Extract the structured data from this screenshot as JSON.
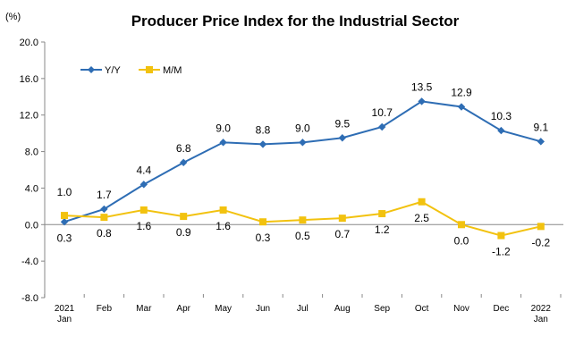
{
  "chart_data": {
    "type": "line",
    "title": "Producer Price Index for the Industrial Sector",
    "ylabel": "(%)",
    "ylim": [
      -8.0,
      20.0
    ],
    "yticks": [
      "20.0",
      "16.0",
      "12.0",
      "8.0",
      "4.0",
      "0.0",
      "-4.0",
      "-8.0"
    ],
    "ytick_values": [
      20,
      16,
      12,
      8,
      4,
      0,
      -4,
      -8
    ],
    "categories": [
      [
        "2021",
        "Jan"
      ],
      [
        "Feb"
      ],
      [
        "Mar"
      ],
      [
        "Apr"
      ],
      [
        "May"
      ],
      [
        "Jun"
      ],
      [
        "Jul"
      ],
      [
        "Aug"
      ],
      [
        "Sep"
      ],
      [
        "Oct"
      ],
      [
        "Nov"
      ],
      [
        "Dec"
      ],
      [
        "2022",
        "Jan"
      ]
    ],
    "grid": false,
    "legend_position": "top-left",
    "series": [
      {
        "name": "Y/Y",
        "color": "#2E6DB4",
        "marker": "diamond",
        "values": [
          0.3,
          1.7,
          4.4,
          6.8,
          9.0,
          8.8,
          9.0,
          9.5,
          10.7,
          13.5,
          12.9,
          10.3,
          9.1
        ],
        "labels": [
          "0.3",
          "1.7",
          "4.4",
          "6.8",
          "9.0",
          "8.8",
          "9.0",
          "9.5",
          "10.7",
          "13.5",
          "12.9",
          "10.3",
          "9.1"
        ]
      },
      {
        "name": "M/M",
        "color": "#F2C20F",
        "marker": "square",
        "values": [
          1.0,
          0.8,
          1.6,
          0.9,
          1.6,
          0.3,
          0.5,
          0.7,
          1.2,
          2.5,
          0.0,
          -1.2,
          -0.2
        ],
        "labels": [
          "1.0",
          "0.8",
          "1.6",
          "0.9",
          "1.6",
          "0.3",
          "0.5",
          "0.7",
          "1.2",
          "2.5",
          "0.0",
          "-1.2",
          "-0.2"
        ]
      }
    ]
  }
}
